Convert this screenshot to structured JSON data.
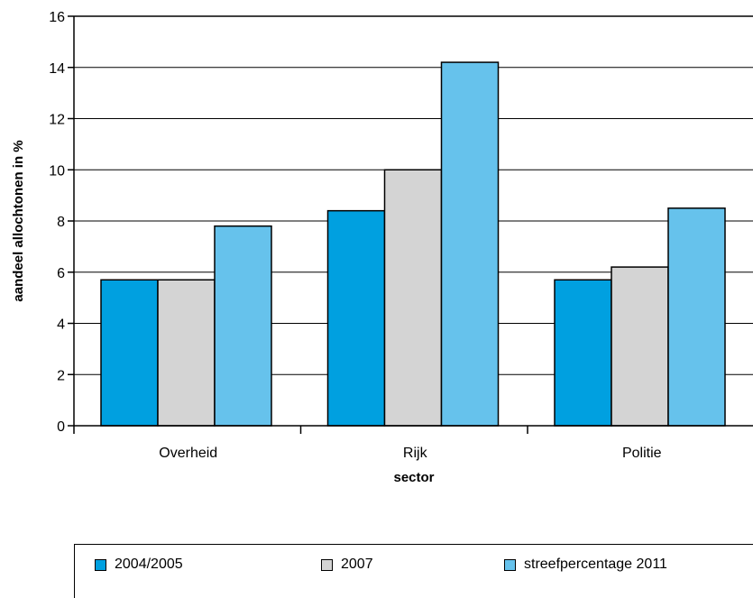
{
  "chart_data": {
    "type": "bar",
    "title": "",
    "xlabel": "sector",
    "ylabel": "aandeel allochtonen in %",
    "categories": [
      "Overheid",
      "Rijk",
      "Politie"
    ],
    "series": [
      {
        "name": "2004/2005",
        "color": "#00a0e0",
        "values": [
          5.7,
          8.4,
          5.7
        ]
      },
      {
        "name": "2007",
        "color": "#d4d4d4",
        "values": [
          5.7,
          10.0,
          6.2
        ]
      },
      {
        "name": "streefpercentage 2011",
        "color": "#66c2ec",
        "values": [
          7.8,
          14.2,
          8.5
        ]
      }
    ],
    "ylim": [
      0,
      16
    ],
    "yticks": [
      "0",
      "2",
      "4",
      "6",
      "8",
      "10",
      "12",
      "14",
      "16"
    ],
    "grid": true,
    "legend_position": "bottom"
  }
}
